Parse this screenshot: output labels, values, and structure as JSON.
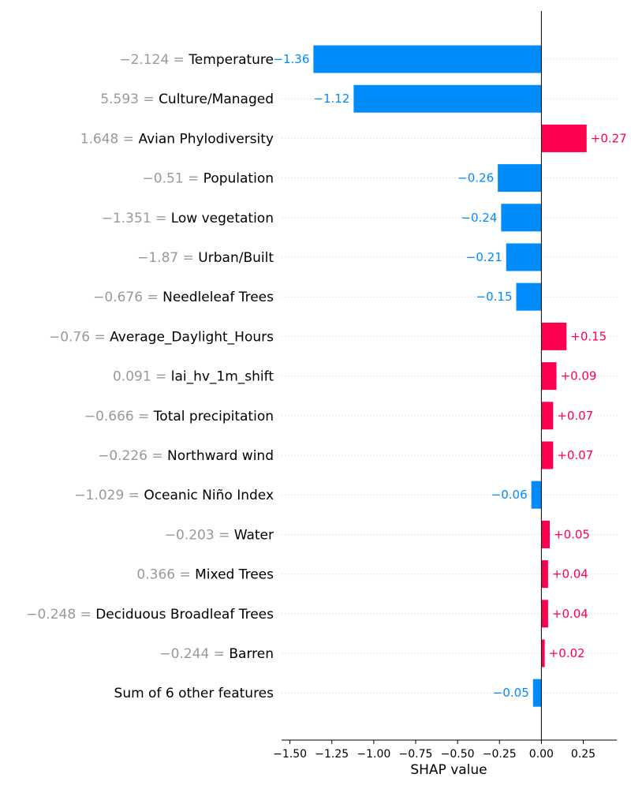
{
  "chart_data": {
    "type": "bar",
    "orientation": "horizontal",
    "xlabel": "SHAP value",
    "xlim": [
      -1.55,
      0.45
    ],
    "xticks": [
      "−1.50",
      "−1.25",
      "−1.00",
      "−0.75",
      "−0.50",
      "−0.25",
      "0.00",
      "0.25"
    ],
    "xtick_values": [
      -1.5,
      -1.25,
      -1.0,
      -0.75,
      -0.5,
      -0.25,
      0.0,
      0.25
    ],
    "grid": "dotted horizontal rows",
    "colors": {
      "positive": "#ff0051",
      "negative": "#008bfb",
      "feature_value": "#999999"
    },
    "features": [
      {
        "value": "−2.124 =",
        "name": "Temperature",
        "shap": -1.36,
        "label": "−1.36"
      },
      {
        "value": "5.593 =",
        "name": "Culture/Managed",
        "shap": -1.12,
        "label": "−1.12"
      },
      {
        "value": "1.648 =",
        "name": "Avian Phylodiversity",
        "shap": 0.27,
        "label": "+0.27"
      },
      {
        "value": "−0.51 =",
        "name": "Population",
        "shap": -0.26,
        "label": "−0.26"
      },
      {
        "value": "−1.351 =",
        "name": "Low vegetation",
        "shap": -0.24,
        "label": "−0.24"
      },
      {
        "value": "−1.87 =",
        "name": "Urban/Built",
        "shap": -0.21,
        "label": "−0.21"
      },
      {
        "value": "−0.676 =",
        "name": "Needleleaf Trees",
        "shap": -0.15,
        "label": "−0.15"
      },
      {
        "value": "−0.76 =",
        "name": "Average_Daylight_Hours",
        "shap": 0.15,
        "label": "+0.15"
      },
      {
        "value": "0.091 =",
        "name": "lai_hv_1m_shift",
        "shap": 0.09,
        "label": "+0.09"
      },
      {
        "value": "−0.666 =",
        "name": "Total precipitation",
        "shap": 0.07,
        "label": "+0.07"
      },
      {
        "value": "−0.226 =",
        "name": "Northward wind",
        "shap": 0.07,
        "label": "+0.07"
      },
      {
        "value": "−1.029 =",
        "name": "Oceanic Niño Index",
        "shap": -0.06,
        "label": "−0.06"
      },
      {
        "value": "−0.203 =",
        "name": "Water",
        "shap": 0.05,
        "label": "+0.05"
      },
      {
        "value": "0.366 =",
        "name": "Mixed Trees",
        "shap": 0.04,
        "label": "+0.04"
      },
      {
        "value": "−0.248 =",
        "name": "Deciduous Broadleaf Trees",
        "shap": 0.04,
        "label": "+0.04"
      },
      {
        "value": "−0.244 =",
        "name": "Barren",
        "shap": 0.02,
        "label": "+0.02"
      },
      {
        "value": "",
        "name": "Sum of 6 other features",
        "shap": -0.05,
        "label": "−0.05"
      }
    ]
  }
}
